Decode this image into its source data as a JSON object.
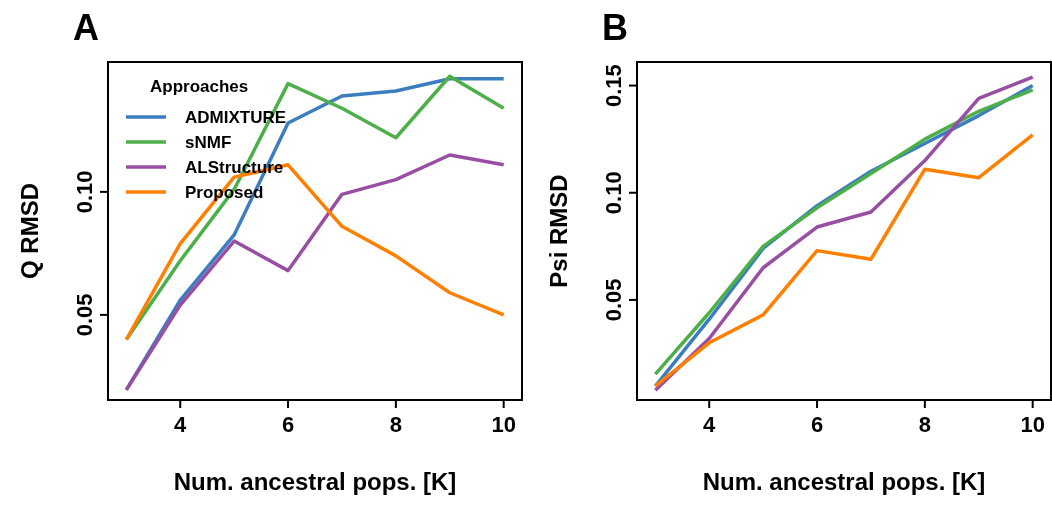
{
  "chart_data": [
    {
      "type": "line",
      "title": "A",
      "xlabel": "Num. ancestral pops. [K]",
      "ylabel": "Q RMSD",
      "legend_title": "Approaches",
      "legend": "top left",
      "x": [
        3,
        4,
        5,
        6,
        7,
        8,
        9,
        10
      ],
      "xlim": [
        2.66,
        10.34
      ],
      "xticks": [
        4,
        6,
        8,
        10
      ],
      "ylim": [
        0.0154,
        0.1528
      ],
      "yticks": [
        {
          "value": 0.05,
          "label": "0.05"
        },
        {
          "value": 0.1,
          "label": "0.10"
        }
      ],
      "grid": false,
      "marker": "none",
      "line_style": "solid",
      "series": [
        {
          "name": "ADMIXTURE",
          "color": "#3a7ebf",
          "values": [
            0.0195,
            0.056,
            0.0825,
            0.128,
            0.139,
            0.141,
            0.146,
            0.146
          ]
        },
        {
          "name": "sNMF",
          "color": "#4daf4a",
          "values": [
            0.04,
            0.072,
            0.101,
            0.144,
            0.134,
            0.122,
            0.147,
            0.134
          ]
        },
        {
          "name": "ALStructure",
          "color": "#984ea3",
          "values": [
            0.0195,
            0.054,
            0.08,
            0.068,
            0.099,
            0.105,
            0.115,
            0.111
          ]
        },
        {
          "name": "Proposed",
          "color": "#ff7f00",
          "values": [
            0.04,
            0.079,
            0.106,
            0.111,
            0.086,
            0.074,
            0.059,
            0.05
          ]
        }
      ]
    },
    {
      "type": "line",
      "title": "B",
      "xlabel": "Num. ancestral pops. [K]",
      "ylabel": "Psi RMSD",
      "legend": false,
      "x": [
        3,
        4,
        5,
        6,
        7,
        8,
        9,
        10
      ],
      "xlim": [
        2.66,
        10.34
      ],
      "xticks": [
        4,
        6,
        8,
        10
      ],
      "ylim": [
        0.0033,
        0.161
      ],
      "yticks": [
        {
          "value": 0.05,
          "label": "0.05"
        },
        {
          "value": 0.1,
          "label": "0.10"
        },
        {
          "value": 0.15,
          "label": "0.15"
        }
      ],
      "grid": false,
      "marker": "none",
      "line_style": "solid",
      "series": [
        {
          "color": "#3a7ebf",
          "values": [
            0.0098,
            0.041,
            0.074,
            0.094,
            0.11,
            0.123,
            0.136,
            0.15
          ]
        },
        {
          "color": "#4daf4a",
          "values": [
            0.0154,
            0.044,
            0.075,
            0.093,
            0.109,
            0.125,
            0.138,
            0.148
          ]
        },
        {
          "color": "#984ea3",
          "values": [
            0.0079,
            0.032,
            0.065,
            0.084,
            0.091,
            0.115,
            0.144,
            0.154
          ]
        },
        {
          "color": "#ff7f00",
          "values": [
            0.0098,
            0.03,
            0.043,
            0.073,
            0.069,
            0.111,
            0.107,
            0.127
          ]
        }
      ]
    }
  ]
}
